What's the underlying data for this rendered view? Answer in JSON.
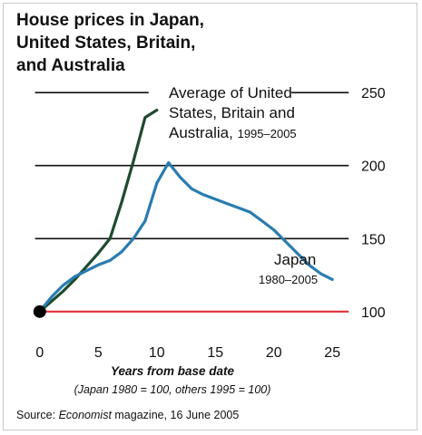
{
  "title_lines": [
    "House prices in Japan,",
    "United States, Britain,",
    "and Australia"
  ],
  "source": {
    "prefix": "Source: ",
    "publication": "Economist",
    "suffix": " magazine, 16 June 2005"
  },
  "colors": {
    "usba_series": "#1e4b2e",
    "japan_series": "#2a7cb0",
    "baseline": "#e0303a",
    "gridline": "#111111",
    "origin_dot": "#000000"
  },
  "chart_data": {
    "type": "line",
    "title": "House prices in Japan, United States, Britain, and Australia",
    "xlabel": "Years from base date",
    "xlabel_note": "(Japan 1980 = 100, others 1995 = 100)",
    "xlim": [
      -2,
      27
    ],
    "ylim": [
      85,
      265
    ],
    "x_ticks": [
      0,
      5,
      10,
      15,
      20,
      25
    ],
    "y_ticks": [
      100,
      150,
      200,
      250
    ],
    "y_axis_side": "right",
    "grid": true,
    "baseline_value": 100,
    "series": [
      {
        "key": "usba",
        "label_lines": [
          "Average of United",
          "States, Britain and"
        ],
        "label_last_prefix": "Australia, ",
        "label_last_years": "1995–2005",
        "x": [
          0,
          1,
          2,
          3,
          4,
          5,
          6,
          7,
          8,
          9,
          10
        ],
        "values": [
          100,
          107,
          114,
          122,
          131,
          140,
          150,
          175,
          203,
          233,
          238
        ]
      },
      {
        "key": "japan",
        "label_lines": [
          "Japan"
        ],
        "label_years": "1980–2005",
        "x": [
          0,
          1,
          2,
          3,
          4,
          5,
          6,
          7,
          8,
          9,
          10,
          11,
          12,
          13,
          14,
          15,
          16,
          17,
          18,
          19,
          20,
          21,
          22,
          23,
          24,
          25
        ],
        "values": [
          100,
          110,
          118,
          124,
          128,
          132,
          135,
          141,
          150,
          162,
          188,
          202,
          192,
          184,
          180,
          177,
          174,
          171,
          168,
          162,
          156,
          148,
          140,
          132,
          126,
          122
        ]
      }
    ]
  }
}
